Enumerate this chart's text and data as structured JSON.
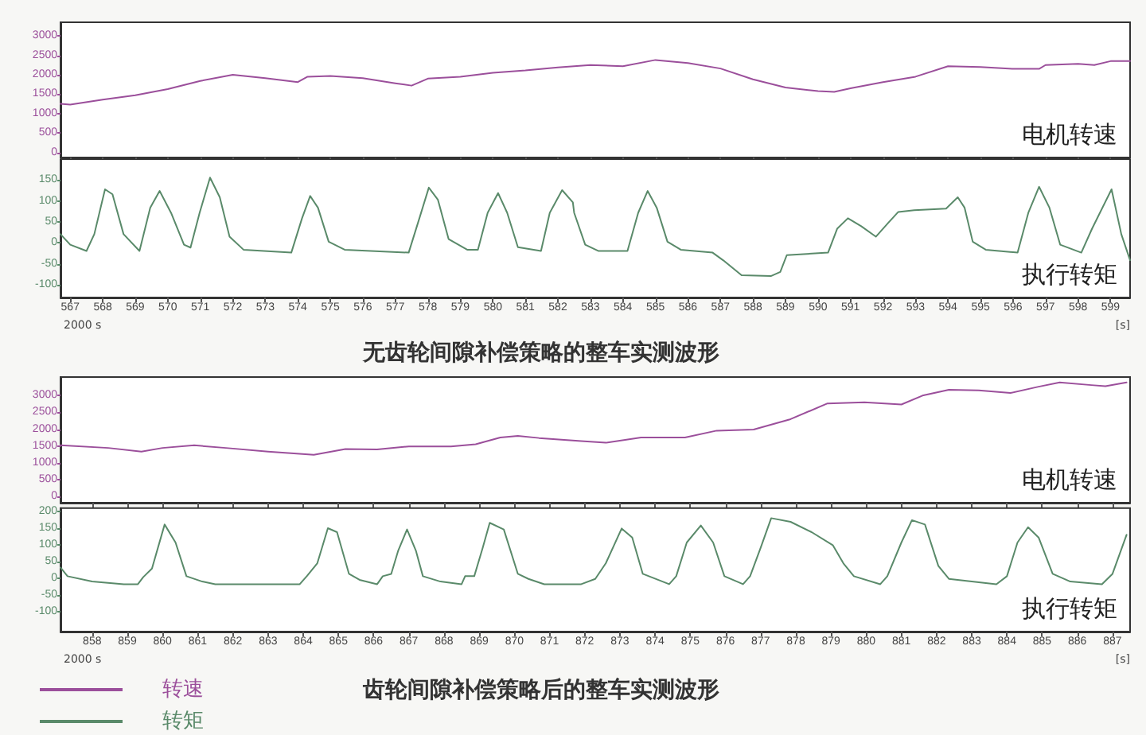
{
  "chart_data": [
    {
      "type": "line",
      "marker": "none",
      "tick_labels": "y",
      "annotations": [
        "电机转速"
      ],
      "xlim": [
        566.7,
        599.6
      ],
      "xticks": [
        567,
        568,
        569,
        570,
        571,
        572,
        573,
        574,
        575,
        576,
        577,
        578,
        579,
        580,
        581,
        582,
        583,
        584,
        585,
        586,
        587,
        588,
        589,
        590,
        591,
        592,
        593,
        594,
        595,
        596,
        597,
        598,
        599
      ],
      "ylim": [
        -130,
        3350
      ],
      "yticks": [
        0,
        500,
        1000,
        1500,
        2000,
        2500,
        3000
      ],
      "series": [
        {
          "color": "#9b4f9b",
          "x": [
            566.7,
            567,
            568,
            569,
            570,
            571,
            572,
            573,
            574,
            574.3,
            575,
            576,
            577,
            577.5,
            578,
            579,
            580,
            581,
            582,
            583,
            584,
            585,
            586,
            587,
            588,
            589,
            590,
            590.5,
            591,
            592,
            593,
            594,
            595,
            596,
            596.8,
            597,
            598,
            598.5,
            599,
            599.6
          ],
          "values": [
            1250,
            1230,
            1360,
            1470,
            1630,
            1840,
            2000,
            1910,
            1810,
            1950,
            1970,
            1910,
            1780,
            1720,
            1900,
            1950,
            2050,
            2110,
            2190,
            2250,
            2220,
            2380,
            2300,
            2160,
            1880,
            1670,
            1580,
            1560,
            1650,
            1810,
            1950,
            2220,
            2200,
            2150,
            2150,
            2250,
            2280,
            2250,
            2350,
            2350
          ]
        }
      ]
    },
    {
      "type": "line",
      "marker": "none",
      "title": "无齿轮间隙补偿策略的整车实测波形",
      "xlabel": "[s]",
      "annotations": [
        "执行转矩",
        "2000 s"
      ],
      "xlim": [
        566.7,
        599.6
      ],
      "xticks": [
        567,
        568,
        569,
        570,
        571,
        572,
        573,
        574,
        575,
        576,
        577,
        578,
        579,
        580,
        581,
        582,
        583,
        584,
        585,
        586,
        587,
        588,
        589,
        590,
        591,
        592,
        593,
        594,
        595,
        596,
        597,
        598,
        599
      ],
      "ylim": [
        -130,
        200
      ],
      "yticks": [
        -100,
        -50,
        0,
        50,
        100,
        150
      ],
      "series": [
        {
          "color": "#5a8a6a",
          "x": [
            566.7,
            567,
            567.5,
            567.74,
            568.07,
            568.3,
            568.64,
            569.13,
            569.46,
            569.75,
            570.1,
            570.5,
            570.7,
            570.98,
            571.3,
            571.6,
            571.9,
            572.33,
            573.8,
            574.13,
            574.38,
            574.62,
            574.95,
            575.44,
            577.41,
            577.74,
            578.03,
            578.31,
            578.64,
            579.21,
            579.54,
            579.84,
            580.16,
            580.44,
            580.77,
            581.48,
            581.75,
            582.13,
            582.46,
            582.5,
            582.84,
            583.24,
            584.14,
            584.47,
            584.76,
            585.04,
            585.37,
            585.78,
            586.76,
            587.08,
            587.65,
            588.55,
            588.84,
            589.04,
            590.31,
            590.59,
            590.92,
            591.33,
            591.78,
            592.14,
            592.47,
            592.96,
            593.94,
            594.3,
            594.51,
            594.76,
            595.16,
            596.14,
            596.47,
            596.8,
            597.12,
            597.45,
            598.1,
            598.43,
            599.03,
            599.33,
            599.6
          ],
          "values": [
            21,
            -4,
            -19,
            21,
            128,
            116,
            21,
            -19,
            84,
            124,
            72,
            -4,
            -11,
            72,
            156,
            109,
            15,
            -16,
            -23,
            59,
            112,
            84,
            3,
            -16,
            -23,
            59,
            132,
            103,
            9,
            -16,
            -16,
            72,
            119,
            72,
            -10,
            -19,
            72,
            126,
            97,
            72,
            -4,
            -19,
            -19,
            72,
            124,
            84,
            3,
            -16,
            -23,
            -41,
            -77,
            -79,
            -69,
            -29,
            -23,
            34,
            59,
            40,
            15,
            46,
            74,
            78,
            82,
            109,
            84,
            3,
            -16,
            -23,
            72,
            134,
            84,
            -4,
            -23,
            34,
            128,
            21,
            -41
          ]
        }
      ]
    },
    {
      "type": "line",
      "marker": "none",
      "tick_labels": "y",
      "legend": "bottom left",
      "annotations": [
        "电机转速"
      ],
      "xlim": [
        857.1,
        887.5
      ],
      "xticks": [
        858,
        859,
        860,
        861,
        862,
        863,
        864,
        865,
        866,
        867,
        868,
        869,
        870,
        871,
        872,
        873,
        874,
        875,
        876,
        877,
        878,
        879,
        880,
        881,
        882,
        883,
        884,
        885,
        886,
        887
      ],
      "ylim": [
        -180,
        3550
      ],
      "yticks": [
        0,
        500,
        1000,
        1500,
        2000,
        2500,
        3000
      ],
      "series": [
        {
          "name": "转速",
          "color": "#9b4f9b",
          "x": [
            857.1,
            858.46,
            859.4,
            860,
            860.9,
            861.8,
            863,
            864.3,
            865.2,
            866.1,
            867,
            868.2,
            868.9,
            869.6,
            870.1,
            870.7,
            871.9,
            872.6,
            873.6,
            874.85,
            875.75,
            876.8,
            877.85,
            878.9,
            879.95,
            881,
            881.6,
            882.35,
            883.2,
            884.1,
            884.9,
            885.5,
            886.4,
            886.8,
            887.4
          ],
          "values": [
            1523,
            1446,
            1337,
            1446,
            1523,
            1446,
            1337,
            1244,
            1415,
            1399,
            1492,
            1492,
            1554,
            1756,
            1803,
            1741,
            1648,
            1601,
            1756,
            1756,
            1959,
            1990,
            2300,
            2767,
            2798,
            2736,
            3000,
            3171,
            3155,
            3078,
            3264,
            3389,
            3311,
            3280,
            3389
          ]
        }
      ]
    },
    {
      "type": "line",
      "marker": "none",
      "title": "齿轮间隙补偿策略后的整车实测波形",
      "xlabel": "[s]",
      "legend": "bottom left",
      "annotations": [
        "执行转矩",
        "2000 s"
      ],
      "xlim": [
        857.1,
        887.5
      ],
      "xticks": [
        858,
        859,
        860,
        861,
        862,
        863,
        864,
        865,
        866,
        867,
        868,
        869,
        870,
        871,
        872,
        873,
        874,
        875,
        876,
        877,
        878,
        879,
        880,
        881,
        882,
        883,
        884,
        885,
        886,
        887
      ],
      "ylim": [
        -160,
        210
      ],
      "yticks": [
        -100,
        -50,
        0,
        50,
        100,
        150,
        200
      ],
      "series": [
        {
          "name": "转矩",
          "color": "#5a8a6a",
          "x": [
            857.1,
            857.3,
            858,
            858.9,
            859.3,
            859.45,
            859.7,
            860.06,
            860.37,
            860.68,
            861.13,
            861.5,
            863.9,
            864.1,
            864.4,
            864.7,
            864.96,
            865.3,
            865.6,
            866.1,
            866.26,
            866.5,
            866.7,
            866.95,
            867.2,
            867.4,
            867.9,
            868.5,
            868.6,
            868.86,
            869.1,
            869.3,
            869.7,
            870.1,
            870.4,
            870.85,
            871.9,
            872.3,
            872.6,
            873.05,
            873.35,
            873.65,
            874.4,
            874.6,
            874.9,
            875.3,
            875.65,
            875.97,
            876.5,
            876.7,
            877,
            877.3,
            877.85,
            878.45,
            879.05,
            879.35,
            879.65,
            880.4,
            880.6,
            881,
            881.3,
            881.67,
            882.05,
            882.35,
            883.7,
            884,
            884.3,
            884.6,
            884.9,
            885.3,
            885.8,
            886.7,
            887,
            887.4
          ],
          "values": [
            32,
            6,
            -10,
            -18,
            -18,
            3,
            29,
            161,
            107,
            6,
            -10,
            -18,
            -18,
            6,
            45,
            150,
            138,
            13,
            -5,
            -18,
            6,
            13,
            83,
            146,
            83,
            6,
            -10,
            -18,
            6,
            6,
            91,
            166,
            146,
            13,
            -2,
            -18,
            -18,
            -2,
            45,
            149,
            122,
            13,
            -18,
            6,
            107,
            158,
            107,
            6,
            -18,
            6,
            91,
            180,
            169,
            138,
            99,
            45,
            6,
            -18,
            6,
            107,
            174,
            161,
            37,
            -2,
            -18,
            6,
            107,
            153,
            122,
            13,
            -10,
            -18,
            13,
            130
          ]
        }
      ]
    }
  ]
}
